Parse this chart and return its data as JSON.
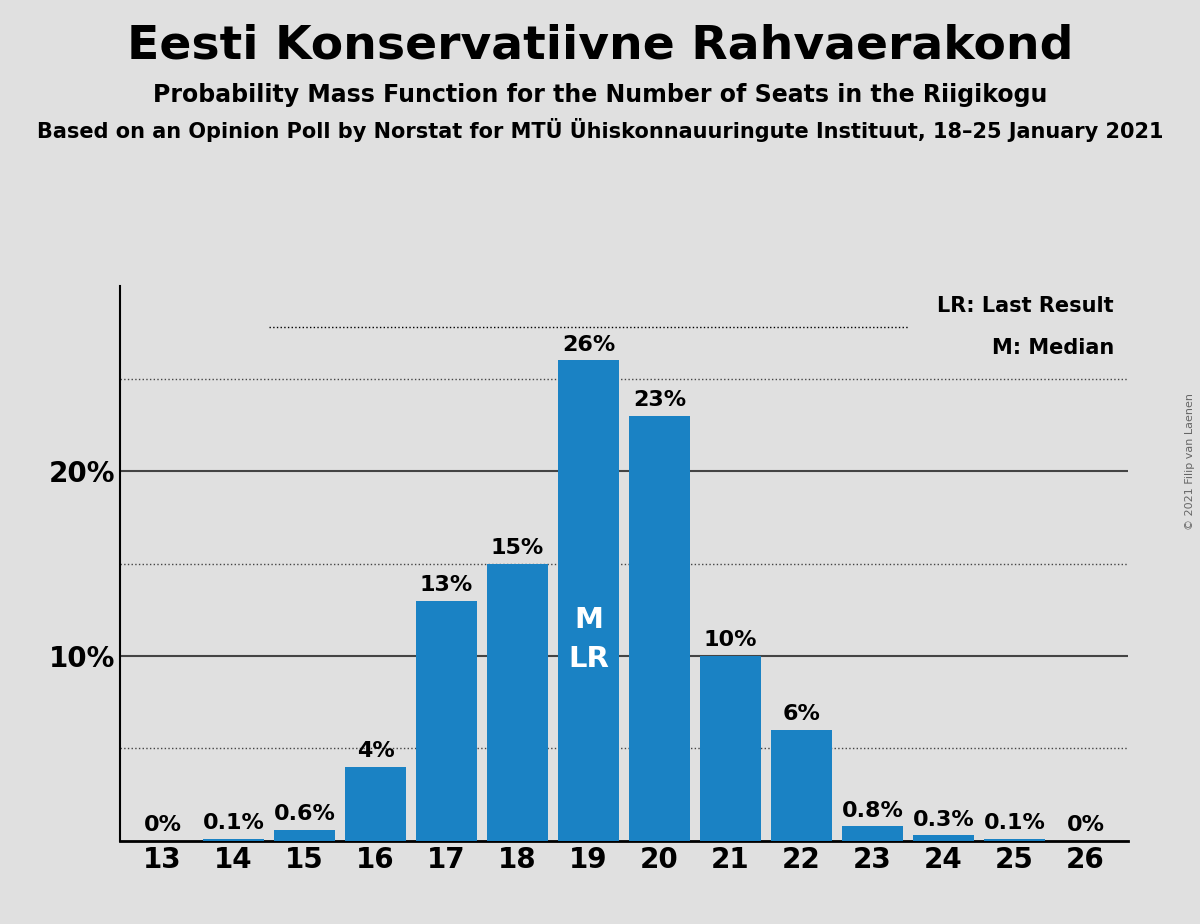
{
  "title": "Eesti Konservatiivne Rahvaerakond",
  "subtitle": "Probability Mass Function for the Number of Seats in the Riigikogu",
  "source_line": "Based on an Opinion Poll by Norstat for MTU Uhiskonnauuringute Instituut, 18–25 January 2021",
  "source_line_display": "Based on an Opinion Poll by Norstat for MTÜ Ühiskonnauuringute Instituut, 18–25 January 2021",
  "copyright_text": "© 2021 Filip van Laenen",
  "seats": [
    13,
    14,
    15,
    16,
    17,
    18,
    19,
    20,
    21,
    22,
    23,
    24,
    25,
    26
  ],
  "probabilities": [
    0.0,
    0.1,
    0.6,
    4.0,
    13.0,
    15.0,
    26.0,
    23.0,
    10.0,
    6.0,
    0.8,
    0.3,
    0.1,
    0.0
  ],
  "bar_color": "#1a82c4",
  "median_seat": 19,
  "last_result_seat": 19,
  "bg_color": "#e0e0e0",
  "plot_bg_color": "#e0e0e0",
  "grid_color": "#444444",
  "dotted_line_values": [
    5.0,
    15.0,
    25.0
  ],
  "solid_line_values": [
    10.0,
    20.0
  ],
  "title_fontsize": 34,
  "subtitle_fontsize": 17,
  "source_fontsize": 15,
  "bar_label_fontsize": 16,
  "tick_fontsize": 20,
  "legend_fontsize": 15
}
